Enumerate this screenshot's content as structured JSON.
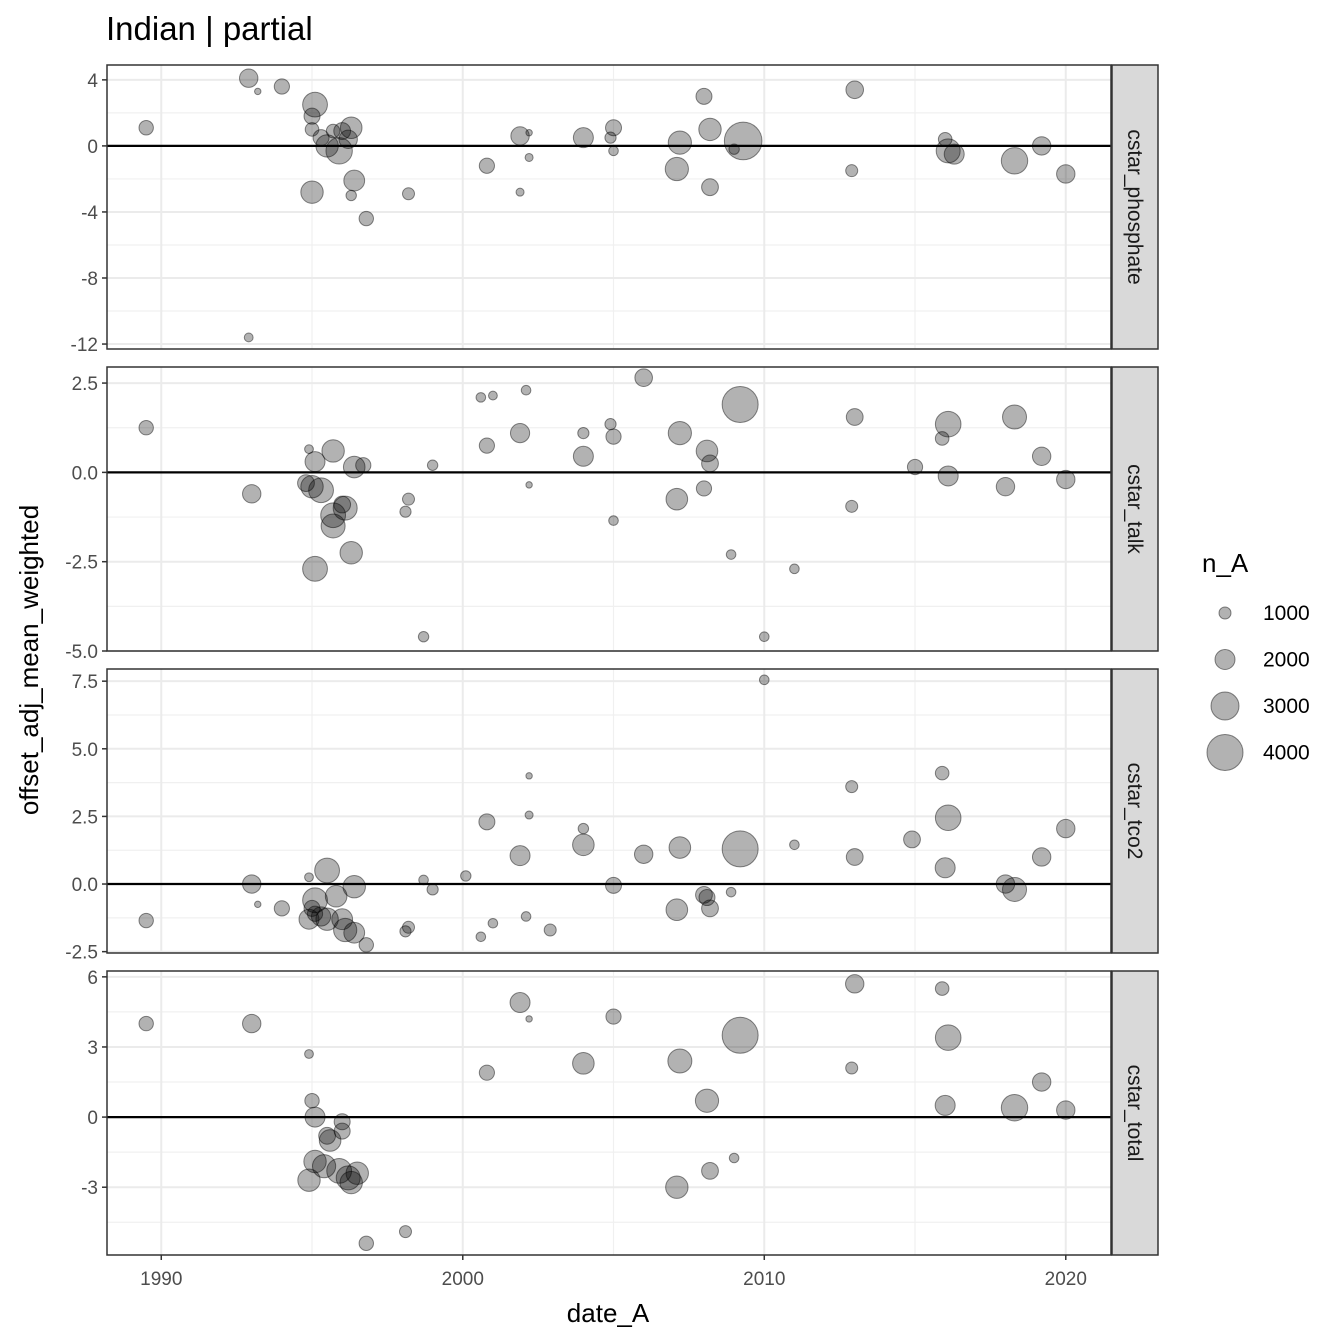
{
  "chart_data": {
    "type": "scatter",
    "title": "Indian | partial",
    "xlabel": "date_A",
    "ylabel": "offset_adj_mean_weighted",
    "xlim": [
      1988.2,
      2021.5
    ],
    "x_ticks": [
      1990,
      2000,
      2010,
      2020
    ],
    "x_tick_labels": [
      "1990",
      "2000",
      "2010",
      "2020"
    ],
    "grid": true,
    "point_color": "#000000",
    "point_alpha": 0.3,
    "zero_line": 0,
    "size_legend": {
      "title": "n_A",
      "placement": "right",
      "entries": [
        {
          "label": "1000",
          "n": 1000
        },
        {
          "label": "2000",
          "n": 2000
        },
        {
          "label": "3000",
          "n": 3000
        },
        {
          "label": "4000",
          "n": 4000
        }
      ]
    },
    "facets": [
      {
        "label": "cstar_phosphate",
        "ylim": [
          -12.3,
          4.9
        ],
        "y_ticks": [
          4,
          0,
          -4,
          -8,
          -12
        ],
        "y_tick_labels": [
          "4",
          "0",
          "-4",
          "-8",
          "-12"
        ],
        "points": [
          {
            "x": 1989.5,
            "y": 1.1,
            "n": 1300
          },
          {
            "x": 1992.9,
            "y": 4.1,
            "n": 1800
          },
          {
            "x": 1993.2,
            "y": 3.3,
            "n": 300
          },
          {
            "x": 1994.0,
            "y": 3.6,
            "n": 1400
          },
          {
            "x": 1992.9,
            "y": -11.6,
            "n": 600
          },
          {
            "x": 1995.0,
            "y": 1.8,
            "n": 1500
          },
          {
            "x": 1995.1,
            "y": 2.5,
            "n": 2600
          },
          {
            "x": 1995.0,
            "y": 1.0,
            "n": 1200
          },
          {
            "x": 1995.3,
            "y": 0.5,
            "n": 1500
          },
          {
            "x": 1995.5,
            "y": 0.0,
            "n": 2300
          },
          {
            "x": 1995.7,
            "y": 0.9,
            "n": 1200
          },
          {
            "x": 1995.9,
            "y": -0.3,
            "n": 2800
          },
          {
            "x": 1996.0,
            "y": 0.9,
            "n": 1600
          },
          {
            "x": 1996.2,
            "y": 0.4,
            "n": 1800
          },
          {
            "x": 1996.3,
            "y": 1.1,
            "n": 2200
          },
          {
            "x": 1995.0,
            "y": -2.8,
            "n": 2300
          },
          {
            "x": 1996.4,
            "y": -2.1,
            "n": 2100
          },
          {
            "x": 1996.3,
            "y": -3.0,
            "n": 800
          },
          {
            "x": 1996.8,
            "y": -4.4,
            "n": 1300
          },
          {
            "x": 1998.2,
            "y": -2.9,
            "n": 1000
          },
          {
            "x": 2000.8,
            "y": -1.2,
            "n": 1400
          },
          {
            "x": 2001.9,
            "y": 0.6,
            "n": 1800
          },
          {
            "x": 2002.2,
            "y": 0.8,
            "n": 300
          },
          {
            "x": 2002.2,
            "y": -0.7,
            "n": 500
          },
          {
            "x": 2001.9,
            "y": -2.8,
            "n": 500
          },
          {
            "x": 2004.0,
            "y": 0.5,
            "n": 2000
          },
          {
            "x": 2004.9,
            "y": 0.5,
            "n": 900
          },
          {
            "x": 2005.0,
            "y": 1.1,
            "n": 1500
          },
          {
            "x": 2005.0,
            "y": -0.3,
            "n": 700
          },
          {
            "x": 2007.2,
            "y": 0.2,
            "n": 2400
          },
          {
            "x": 2007.1,
            "y": -1.4,
            "n": 2400
          },
          {
            "x": 2008.0,
            "y": 3.0,
            "n": 1500
          },
          {
            "x": 2008.2,
            "y": 1.0,
            "n": 2300
          },
          {
            "x": 2008.2,
            "y": -2.5,
            "n": 1600
          },
          {
            "x": 2009.0,
            "y": -0.2,
            "n": 800
          },
          {
            "x": 2009.3,
            "y": 0.3,
            "n": 4200
          },
          {
            "x": 2013.0,
            "y": 3.4,
            "n": 1700
          },
          {
            "x": 2012.9,
            "y": -1.5,
            "n": 1000
          },
          {
            "x": 2016.0,
            "y": 0.4,
            "n": 1200
          },
          {
            "x": 2016.1,
            "y": -0.3,
            "n": 2500
          },
          {
            "x": 2016.3,
            "y": -0.5,
            "n": 2000
          },
          {
            "x": 2018.3,
            "y": -0.9,
            "n": 2800
          },
          {
            "x": 2019.2,
            "y": 0.0,
            "n": 1800
          },
          {
            "x": 2020.0,
            "y": -1.7,
            "n": 1800
          }
        ]
      },
      {
        "label": "cstar_talk",
        "ylim": [
          -5.0,
          2.95
        ],
        "y_ticks": [
          2.5,
          0.0,
          -2.5,
          -5.0
        ],
        "y_tick_labels": [
          "2.5",
          "0.0",
          "-2.5",
          "-5.0"
        ],
        "points": [
          {
            "x": 1989.5,
            "y": 1.25,
            "n": 1300
          },
          {
            "x": 1993.0,
            "y": -0.6,
            "n": 1800
          },
          {
            "x": 1994.9,
            "y": 0.65,
            "n": 600
          },
          {
            "x": 1995.1,
            "y": 0.3,
            "n": 2000
          },
          {
            "x": 1994.8,
            "y": -0.3,
            "n": 1600
          },
          {
            "x": 1995.0,
            "y": -0.4,
            "n": 2300
          },
          {
            "x": 1995.3,
            "y": -0.5,
            "n": 2600
          },
          {
            "x": 1995.7,
            "y": 0.6,
            "n": 2300
          },
          {
            "x": 1995.7,
            "y": -1.2,
            "n": 2600
          },
          {
            "x": 1995.7,
            "y": -1.5,
            "n": 2500
          },
          {
            "x": 1996.0,
            "y": -0.9,
            "n": 1600
          },
          {
            "x": 1996.1,
            "y": -1.0,
            "n": 2500
          },
          {
            "x": 1995.1,
            "y": -2.7,
            "n": 2600
          },
          {
            "x": 1996.3,
            "y": -2.25,
            "n": 2300
          },
          {
            "x": 1996.4,
            "y": 0.15,
            "n": 2200
          },
          {
            "x": 1996.7,
            "y": 0.2,
            "n": 1400
          },
          {
            "x": 1998.1,
            "y": -1.1,
            "n": 900
          },
          {
            "x": 1998.2,
            "y": -0.75,
            "n": 1000
          },
          {
            "x": 1998.7,
            "y": -4.6,
            "n": 800
          },
          {
            "x": 1999.0,
            "y": 0.2,
            "n": 800
          },
          {
            "x": 2000.6,
            "y": 2.1,
            "n": 700
          },
          {
            "x": 2001.0,
            "y": 2.15,
            "n": 600
          },
          {
            "x": 2002.1,
            "y": 2.3,
            "n": 700
          },
          {
            "x": 2000.8,
            "y": 0.75,
            "n": 1400
          },
          {
            "x": 2001.9,
            "y": 1.1,
            "n": 1900
          },
          {
            "x": 2002.2,
            "y": -0.35,
            "n": 300
          },
          {
            "x": 2004.0,
            "y": 1.1,
            "n": 900
          },
          {
            "x": 2004.0,
            "y": 0.45,
            "n": 2000
          },
          {
            "x": 2004.9,
            "y": 1.35,
            "n": 900
          },
          {
            "x": 2005.0,
            "y": 1.0,
            "n": 1400
          },
          {
            "x": 2005.0,
            "y": -1.35,
            "n": 700
          },
          {
            "x": 2006.0,
            "y": 2.65,
            "n": 1700
          },
          {
            "x": 2007.2,
            "y": 1.1,
            "n": 2400
          },
          {
            "x": 2007.1,
            "y": -0.75,
            "n": 2200
          },
          {
            "x": 2008.1,
            "y": 0.6,
            "n": 2200
          },
          {
            "x": 2008.0,
            "y": -0.45,
            "n": 1400
          },
          {
            "x": 2008.2,
            "y": 0.25,
            "n": 1600
          },
          {
            "x": 2008.9,
            "y": -2.3,
            "n": 700
          },
          {
            "x": 2009.2,
            "y": 1.9,
            "n": 4000
          },
          {
            "x": 2010.0,
            "y": -4.6,
            "n": 700
          },
          {
            "x": 2011.0,
            "y": -2.7,
            "n": 700
          },
          {
            "x": 2013.0,
            "y": 1.55,
            "n": 1600
          },
          {
            "x": 2012.9,
            "y": -0.95,
            "n": 1000
          },
          {
            "x": 2015.0,
            "y": 0.15,
            "n": 1400
          },
          {
            "x": 2015.9,
            "y": 0.95,
            "n": 1200
          },
          {
            "x": 2016.1,
            "y": 1.35,
            "n": 2700
          },
          {
            "x": 2016.1,
            "y": -0.1,
            "n": 2000
          },
          {
            "x": 2018.0,
            "y": -0.4,
            "n": 1800
          },
          {
            "x": 2018.3,
            "y": 1.55,
            "n": 2500
          },
          {
            "x": 2019.2,
            "y": 0.45,
            "n": 1800
          },
          {
            "x": 2020.0,
            "y": -0.2,
            "n": 1800
          }
        ]
      },
      {
        "label": "cstar_tco2",
        "ylim": [
          -2.55,
          7.95
        ],
        "y_ticks": [
          7.5,
          5.0,
          2.5,
          0.0,
          -2.5
        ],
        "y_tick_labels": [
          "7.5",
          "5.0",
          "2.5",
          "0.0",
          "-2.5"
        ],
        "points": [
          {
            "x": 1989.5,
            "y": -1.35,
            "n": 1300
          },
          {
            "x": 1993.0,
            "y": 0.0,
            "n": 1800
          },
          {
            "x": 1993.2,
            "y": -0.75,
            "n": 300
          },
          {
            "x": 1994.0,
            "y": -0.9,
            "n": 1400
          },
          {
            "x": 1994.9,
            "y": 0.25,
            "n": 600
          },
          {
            "x": 1994.9,
            "y": -1.3,
            "n": 2000
          },
          {
            "x": 1995.0,
            "y": -0.9,
            "n": 1500
          },
          {
            "x": 1995.1,
            "y": -1.1,
            "n": 1400
          },
          {
            "x": 1995.1,
            "y": -0.6,
            "n": 2600
          },
          {
            "x": 1995.3,
            "y": -1.2,
            "n": 1900
          },
          {
            "x": 1995.5,
            "y": -1.3,
            "n": 2300
          },
          {
            "x": 1995.5,
            "y": 0.5,
            "n": 2600
          },
          {
            "x": 1995.8,
            "y": -0.45,
            "n": 2200
          },
          {
            "x": 1996.0,
            "y": -1.3,
            "n": 2100
          },
          {
            "x": 1996.1,
            "y": -1.7,
            "n": 2400
          },
          {
            "x": 1996.4,
            "y": -1.8,
            "n": 2100
          },
          {
            "x": 1996.4,
            "y": -0.1,
            "n": 2300
          },
          {
            "x": 1996.8,
            "y": -2.25,
            "n": 1300
          },
          {
            "x": 1998.1,
            "y": -1.75,
            "n": 900
          },
          {
            "x": 1998.2,
            "y": -1.6,
            "n": 1000
          },
          {
            "x": 1998.7,
            "y": 0.15,
            "n": 700
          },
          {
            "x": 1999.0,
            "y": -0.2,
            "n": 900
          },
          {
            "x": 2000.1,
            "y": 0.3,
            "n": 800
          },
          {
            "x": 2000.6,
            "y": -1.95,
            "n": 700
          },
          {
            "x": 2001.0,
            "y": -1.45,
            "n": 700
          },
          {
            "x": 2000.8,
            "y": 2.3,
            "n": 1500
          },
          {
            "x": 2001.9,
            "y": 1.05,
            "n": 2000
          },
          {
            "x": 2002.1,
            "y": -1.2,
            "n": 700
          },
          {
            "x": 2002.2,
            "y": 2.55,
            "n": 500
          },
          {
            "x": 2002.2,
            "y": 4.0,
            "n": 300
          },
          {
            "x": 2002.9,
            "y": -1.7,
            "n": 1000
          },
          {
            "x": 2004.0,
            "y": 2.05,
            "n": 800
          },
          {
            "x": 2004.0,
            "y": 1.45,
            "n": 2200
          },
          {
            "x": 2005.0,
            "y": -0.05,
            "n": 1500
          },
          {
            "x": 2006.0,
            "y": 1.1,
            "n": 1800
          },
          {
            "x": 2007.2,
            "y": 1.35,
            "n": 2200
          },
          {
            "x": 2007.1,
            "y": -0.95,
            "n": 2200
          },
          {
            "x": 2008.0,
            "y": -0.4,
            "n": 1600
          },
          {
            "x": 2008.1,
            "y": -0.5,
            "n": 1500
          },
          {
            "x": 2008.2,
            "y": -0.9,
            "n": 1600
          },
          {
            "x": 2008.9,
            "y": -0.3,
            "n": 700
          },
          {
            "x": 2009.2,
            "y": 1.3,
            "n": 4000
          },
          {
            "x": 2010.0,
            "y": 7.55,
            "n": 700
          },
          {
            "x": 2011.0,
            "y": 1.45,
            "n": 700
          },
          {
            "x": 2012.9,
            "y": 3.6,
            "n": 1000
          },
          {
            "x": 2013.0,
            "y": 1.0,
            "n": 1600
          },
          {
            "x": 2014.9,
            "y": 1.65,
            "n": 1600
          },
          {
            "x": 2015.9,
            "y": 4.1,
            "n": 1200
          },
          {
            "x": 2016.1,
            "y": 2.45,
            "n": 2700
          },
          {
            "x": 2016.0,
            "y": 0.6,
            "n": 2000
          },
          {
            "x": 2018.0,
            "y": 0.0,
            "n": 1800
          },
          {
            "x": 2018.3,
            "y": -0.2,
            "n": 2500
          },
          {
            "x": 2019.2,
            "y": 1.0,
            "n": 1800
          },
          {
            "x": 2020.0,
            "y": 2.05,
            "n": 1800
          }
        ]
      },
      {
        "label": "cstar_total",
        "ylim": [
          -5.9,
          6.25
        ],
        "y_ticks": [
          6,
          3,
          0,
          -3
        ],
        "y_tick_labels": [
          "6",
          "3",
          "0",
          "-3"
        ],
        "points": [
          {
            "x": 1989.5,
            "y": 4.0,
            "n": 1300
          },
          {
            "x": 1993.0,
            "y": 4.0,
            "n": 1800
          },
          {
            "x": 1994.9,
            "y": 2.7,
            "n": 600
          },
          {
            "x": 1995.0,
            "y": 0.7,
            "n": 1300
          },
          {
            "x": 1995.1,
            "y": 0.0,
            "n": 2000
          },
          {
            "x": 1995.5,
            "y": -0.8,
            "n": 1600
          },
          {
            "x": 1995.6,
            "y": -1.0,
            "n": 2200
          },
          {
            "x": 1996.0,
            "y": -0.2,
            "n": 1500
          },
          {
            "x": 1996.0,
            "y": -0.6,
            "n": 1500
          },
          {
            "x": 1995.1,
            "y": -1.9,
            "n": 2300
          },
          {
            "x": 1995.4,
            "y": -2.1,
            "n": 2400
          },
          {
            "x": 1995.9,
            "y": -2.3,
            "n": 2600
          },
          {
            "x": 1996.2,
            "y": -2.6,
            "n": 2500
          },
          {
            "x": 1996.3,
            "y": -2.8,
            "n": 2300
          },
          {
            "x": 1996.5,
            "y": -2.4,
            "n": 2300
          },
          {
            "x": 1994.9,
            "y": -2.7,
            "n": 2300
          },
          {
            "x": 1996.8,
            "y": -5.4,
            "n": 1300
          },
          {
            "x": 1998.1,
            "y": -4.9,
            "n": 1000
          },
          {
            "x": 2000.8,
            "y": 1.9,
            "n": 1400
          },
          {
            "x": 2001.9,
            "y": 4.9,
            "n": 2000
          },
          {
            "x": 2002.2,
            "y": 4.2,
            "n": 300
          },
          {
            "x": 2004.0,
            "y": 2.3,
            "n": 2200
          },
          {
            "x": 2005.0,
            "y": 4.3,
            "n": 1400
          },
          {
            "x": 2007.2,
            "y": 2.4,
            "n": 2500
          },
          {
            "x": 2007.1,
            "y": -3.0,
            "n": 2300
          },
          {
            "x": 2008.1,
            "y": 0.7,
            "n": 2400
          },
          {
            "x": 2008.2,
            "y": -2.3,
            "n": 1600
          },
          {
            "x": 2009.0,
            "y": -1.75,
            "n": 700
          },
          {
            "x": 2009.2,
            "y": 3.5,
            "n": 4000
          },
          {
            "x": 2013.0,
            "y": 5.7,
            "n": 1800
          },
          {
            "x": 2012.9,
            "y": 2.1,
            "n": 1000
          },
          {
            "x": 2015.9,
            "y": 5.5,
            "n": 1200
          },
          {
            "x": 2016.1,
            "y": 3.4,
            "n": 2700
          },
          {
            "x": 2016.0,
            "y": 0.5,
            "n": 2000
          },
          {
            "x": 2018.3,
            "y": 0.4,
            "n": 2800
          },
          {
            "x": 2019.2,
            "y": 1.5,
            "n": 1800
          },
          {
            "x": 2020.0,
            "y": 0.3,
            "n": 1800
          }
        ]
      }
    ]
  }
}
